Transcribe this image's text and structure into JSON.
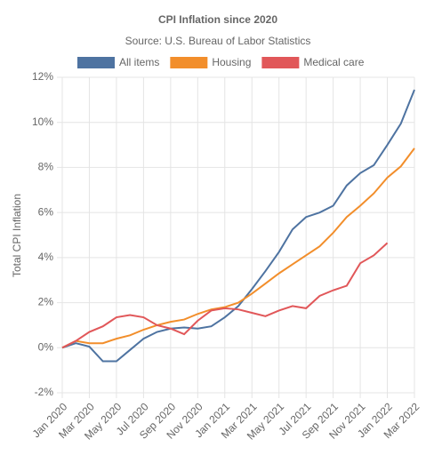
{
  "chart_data": {
    "type": "line",
    "title": "CPI Inflation since 2020",
    "subtitle": "Source: U.S. Bureau of Labor Statistics",
    "y_label": "Total CPI Inflation",
    "categories": [
      "Jan 2020",
      null,
      "Mar 2020",
      null,
      "May 2020",
      null,
      "Jul 2020",
      null,
      "Sep 2020",
      null,
      "Nov 2020",
      null,
      "Jan 2021",
      null,
      "Mar 2021",
      null,
      "May 2021",
      null,
      "Jul 2021",
      null,
      "Sep 2021",
      null,
      "Nov 2021",
      null,
      "Jan 2022",
      null,
      "Mar 2022"
    ],
    "series": [
      {
        "name": "All items",
        "color": "#4e73a1",
        "values": [
          0,
          0.2,
          0.05,
          -0.6,
          -0.6,
          -0.1,
          0.4,
          0.7,
          0.85,
          0.9,
          0.85,
          0.95,
          1.35,
          1.85,
          2.6,
          3.4,
          4.25,
          5.25,
          5.8,
          6.0,
          6.3,
          7.2,
          7.75,
          8.1,
          9.0,
          9.95,
          11.45
        ]
      },
      {
        "name": "Housing",
        "color": "#f28e2b",
        "values": [
          0,
          0.3,
          0.2,
          0.2,
          0.4,
          0.55,
          0.8,
          1.0,
          1.15,
          1.25,
          1.5,
          1.7,
          1.8,
          2.0,
          2.4,
          2.85,
          3.3,
          3.7,
          4.1,
          4.5,
          5.1,
          5.8,
          6.3,
          6.85,
          7.55,
          8.05,
          8.85
        ]
      },
      {
        "name": "Medical care",
        "color": "#e15759",
        "values": [
          0,
          0.3,
          0.7,
          0.95,
          1.35,
          1.45,
          1.35,
          1.0,
          0.85,
          0.6,
          1.2,
          1.65,
          1.75,
          1.7,
          1.55,
          1.4,
          1.65,
          1.85,
          1.75,
          2.3,
          2.55,
          2.75,
          3.75,
          4.1,
          4.65,
          null,
          null
        ]
      }
    ],
    "ylim": [
      -2,
      12
    ],
    "yticks": [
      {
        "value": -2,
        "label": "-2%"
      },
      {
        "value": 0,
        "label": "0%"
      },
      {
        "value": 2,
        "label": "2%"
      },
      {
        "value": 4,
        "label": "4%"
      },
      {
        "value": 6,
        "label": "6%"
      },
      {
        "value": 8,
        "label": "8%"
      },
      {
        "value": 10,
        "label": "10%"
      },
      {
        "value": 12,
        "label": "12%"
      }
    ],
    "grid": true
  }
}
